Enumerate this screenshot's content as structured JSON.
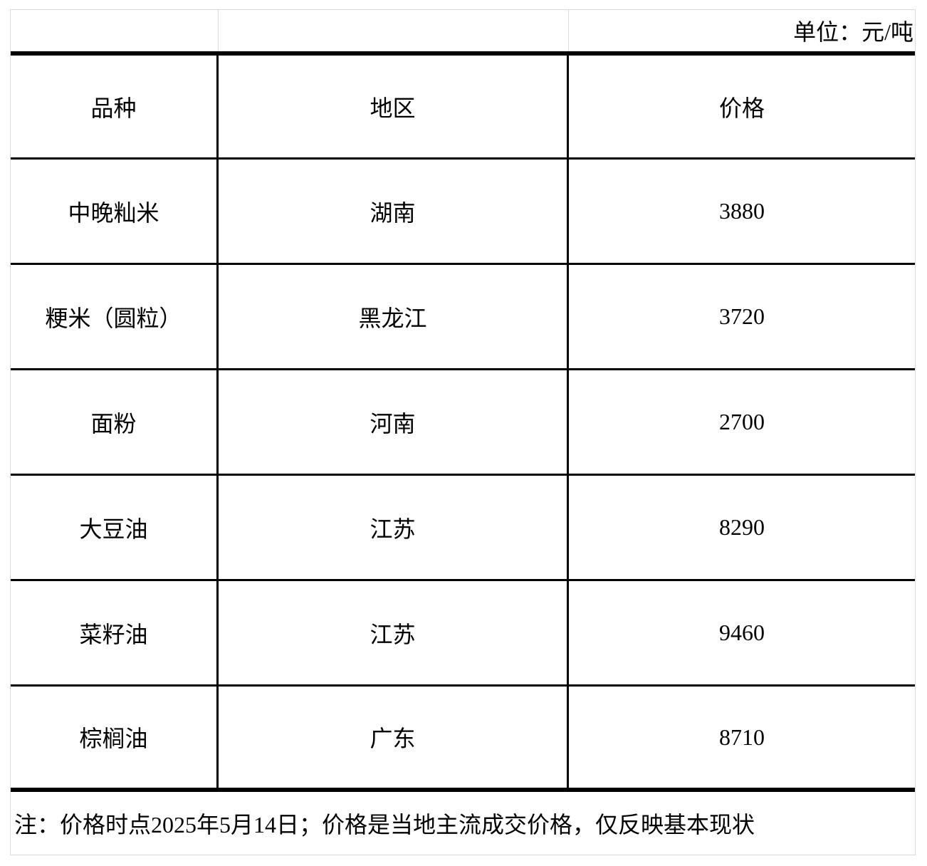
{
  "page": {
    "background_color": "#ffffff",
    "grid_line_color": "#d9d9d9",
    "rule_color": "#000000",
    "text_color": "#000000"
  },
  "table": {
    "unit_label": "单位：元/吨",
    "columns": [
      {
        "key": "variety",
        "label": "品种"
      },
      {
        "key": "region",
        "label": "地区"
      },
      {
        "key": "price",
        "label": "价格"
      }
    ],
    "rows": [
      {
        "variety": "中晚籼米",
        "region": "湖南",
        "price": "3880"
      },
      {
        "variety": "粳米（圆粒）",
        "region": "黑龙江",
        "price": "3720"
      },
      {
        "variety": "面粉",
        "region": "河南",
        "price": "2700"
      },
      {
        "variety": "大豆油",
        "region": "江苏",
        "price": "8290"
      },
      {
        "variety": "菜籽油",
        "region": "江苏",
        "price": "9460"
      },
      {
        "variety": "棕榈油",
        "region": "广东",
        "price": "8710"
      }
    ],
    "note": "注：价格时点2025年5月14日；价格是当地主流成交价格，仅反映基本现状"
  }
}
